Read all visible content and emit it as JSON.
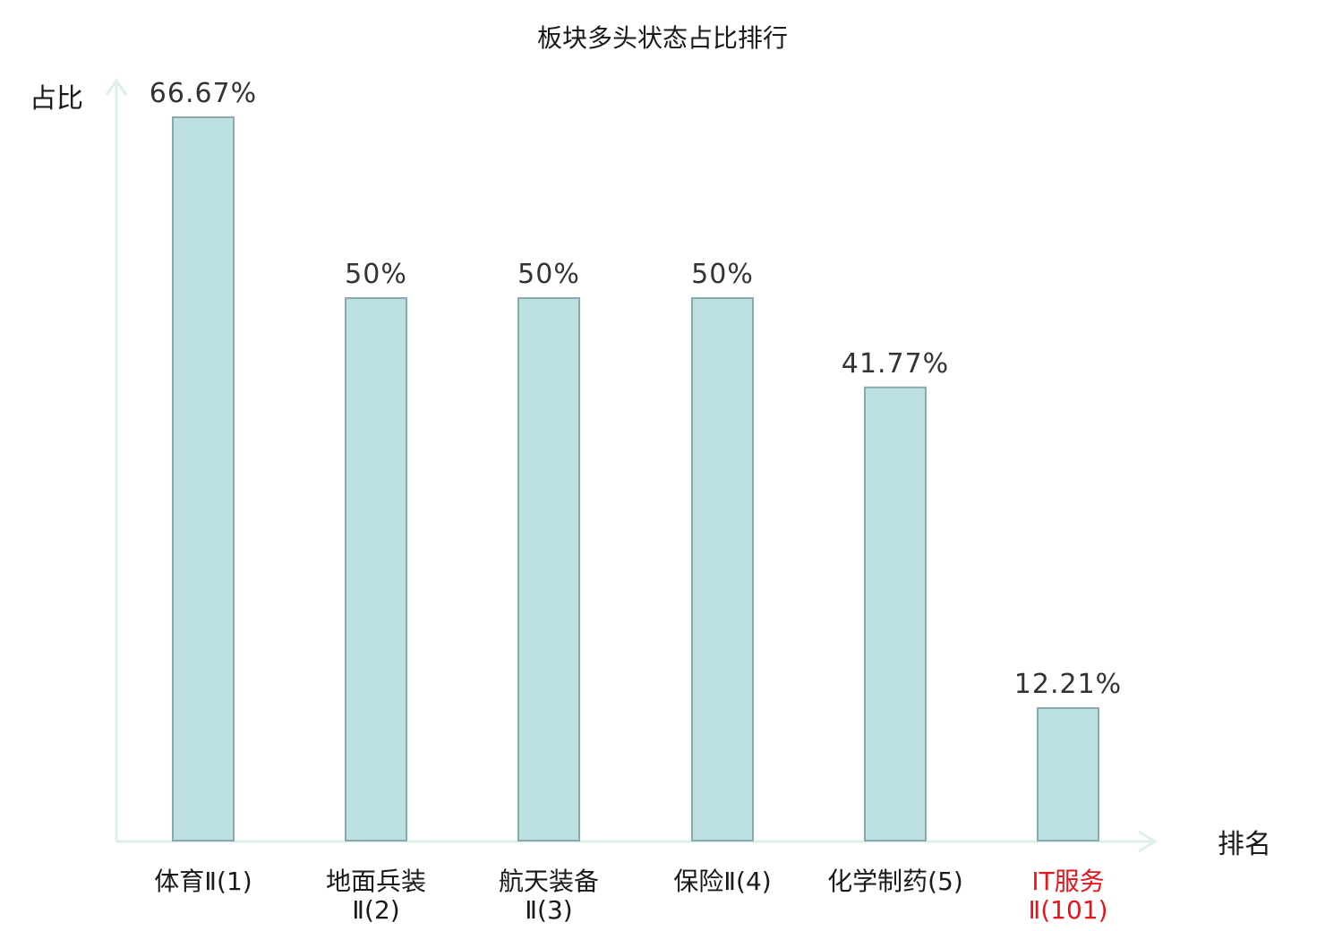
{
  "colors": {
    "bar_fill": "#bde0e3",
    "bar_stroke": "#8aa9ac",
    "axis": "#dcefed",
    "text": "#1a1a1a",
    "value_text": "#333333",
    "highlight": "#e8141b"
  },
  "chart_data": {
    "type": "bar",
    "title": "板块多头状态占比排行",
    "ylabel": "占比",
    "xlabel": "排名",
    "ylim": [
      0,
      70
    ],
    "grid": false,
    "legend": "none",
    "categories": [
      {
        "lines": [
          "体育Ⅱ(1)"
        ],
        "highlight": false
      },
      {
        "lines": [
          "地面兵装",
          "Ⅱ(2)"
        ],
        "highlight": false
      },
      {
        "lines": [
          "航天装备",
          "Ⅱ(3)"
        ],
        "highlight": false
      },
      {
        "lines": [
          "保险Ⅱ(4)"
        ],
        "highlight": false
      },
      {
        "lines": [
          "化学制药(5)"
        ],
        "highlight": false
      },
      {
        "lines": [
          "IT服务",
          "Ⅱ(101)"
        ],
        "highlight": true
      }
    ],
    "values": [
      66.67,
      50,
      50,
      50,
      41.77,
      12.21
    ],
    "value_labels": [
      "66.67%",
      "50%",
      "50%",
      "50%",
      "41.77%",
      "12.21%"
    ]
  }
}
